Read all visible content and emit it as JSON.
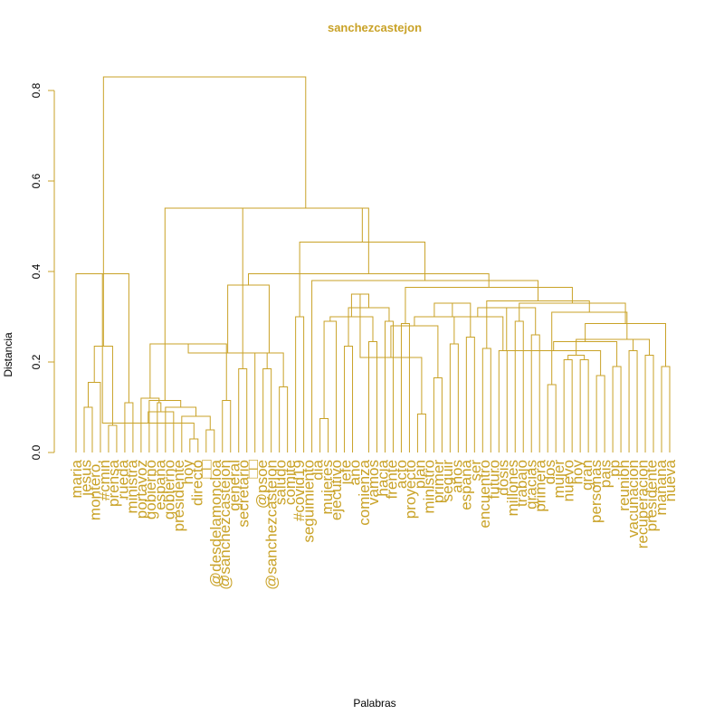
{
  "chart_data": {
    "type": "dendrogram",
    "title": "sanchezcastejon",
    "xlabel": "Palabras",
    "ylabel": "Distancia",
    "ylim": [
      0,
      0.85
    ],
    "yticks": [
      "0.0",
      "0.2",
      "0.4",
      "0.6",
      "0.8"
    ],
    "ytick_values": [
      0,
      0.2,
      0.4,
      0.6,
      0.8
    ],
    "color": "#C9A227",
    "leaves": [
      "maria",
      "jesus",
      "montero,",
      "#cmin",
      "prensa",
      "rueda",
      "ministra",
      "portavoz",
      "gobierno",
      "españa",
      "gobierno",
      "presidente",
      "hoy",
      "directo",
      "□□",
      "@desdelamoncloa",
      "@sanchezcastejon",
      "general",
      "secretario",
      "□□",
      "@psoe",
      "@sanchezcastejon",
      "saludo",
      "comite",
      "#covid19",
      "seguimiento",
      "dia",
      "mujeres",
      "ejecutivo",
      "jefe",
      "ano",
      "comienza",
      "vamos",
      "hacia",
      "frente",
      "acto",
      "proyecto",
      "plan",
      "ministro",
      "primer",
      "seguir",
      "años",
      "espana",
      "ser",
      "encuentro",
      "futuro",
      "dosis",
      "millones",
      "trabajo",
      "gracias",
      "primera",
      "dos",
      "mujer",
      "nuevo",
      "hoy",
      "gran",
      "personas",
      "pais",
      "pp",
      "reunion",
      "vacunacion",
      "recuperacion",
      "presidente",
      "mañana",
      "nueva"
    ]
  }
}
